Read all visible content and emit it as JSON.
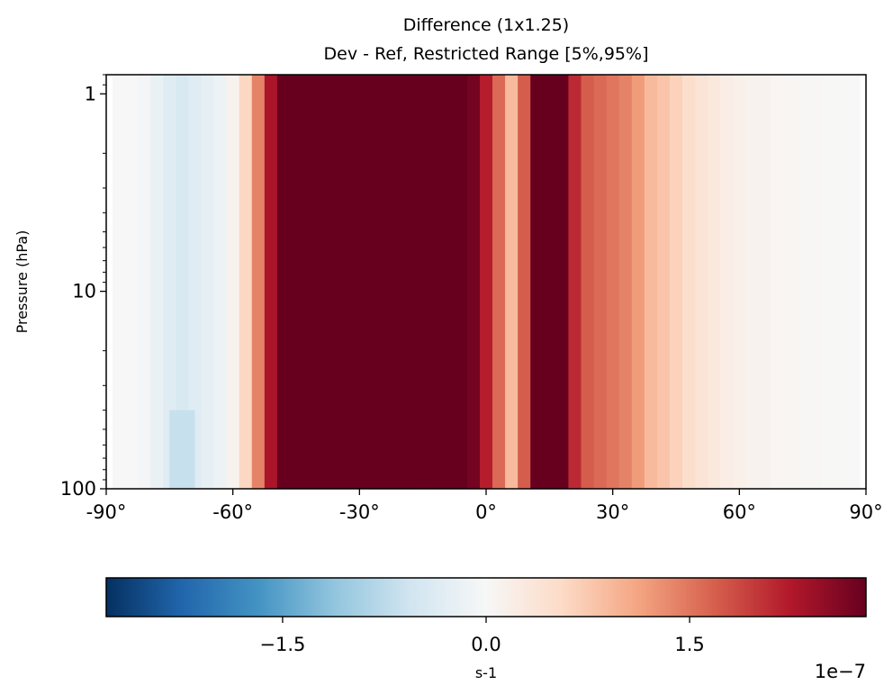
{
  "chart_data": {
    "type": "heatmap",
    "title": [
      "Difference (1x1.25)",
      "Dev - Ref, Restricted Range [5%,95%]"
    ],
    "xlabel": "",
    "ylabel": "Pressure (hPa)",
    "xlim": [
      -90,
      90
    ],
    "ylim": [
      100,
      0.8
    ],
    "yscale": "log",
    "xticks": [
      -90,
      -60,
      -30,
      0,
      30,
      60,
      90
    ],
    "xtick_labels": [
      "-90°",
      "-60°",
      "-30°",
      "0°",
      "30°",
      "60°",
      "90°"
    ],
    "yticks": [
      1,
      10,
      100
    ],
    "ytick_labels": [
      "1",
      "10",
      "100"
    ],
    "colormap": "RdBu_r",
    "color_range": [
      -2.8e-07,
      2.8e-07
    ],
    "colorbar": {
      "orientation": "horizontal",
      "label": "s-1",
      "ticks": [
        -1.5,
        0.0,
        1.5
      ],
      "tick_labels": [
        "−1.5",
        "0.0",
        "1.5"
      ],
      "offset_text": "1e−7"
    },
    "columns_lat": [
      -87,
      -84,
      -81,
      -78,
      -75,
      -72,
      -69,
      -66,
      -63,
      -60,
      -57,
      -54,
      -51,
      -48,
      -45,
      -42,
      -39,
      -36,
      -33,
      -30,
      -27,
      -24,
      -21,
      -18,
      -15,
      -12,
      -9,
      -6,
      -3,
      0,
      3,
      6,
      9,
      12,
      15,
      18,
      21,
      24,
      27,
      30,
      33,
      36,
      39,
      42,
      45,
      48,
      51,
      54,
      57,
      60,
      63,
      66,
      69,
      72,
      75,
      78,
      81,
      84,
      87
    ],
    "values_1e-7": [
      0.0,
      0.0,
      -0.05,
      -0.2,
      -0.35,
      -0.45,
      -0.35,
      -0.25,
      -0.15,
      0.1,
      0.6,
      1.4,
      2.3,
      2.9,
      3.3,
      3.6,
      3.5,
      3.2,
      2.9,
      3.1,
      3.4,
      3.0,
      3.5,
      4.0,
      3.9,
      3.3,
      2.9,
      3.3,
      2.7,
      2.2,
      1.6,
      0.9,
      1.7,
      4.0,
      4.2,
      3.0,
      2.1,
      1.7,
      1.6,
      1.5,
      1.4,
      1.2,
      0.9,
      0.8,
      0.65,
      0.5,
      0.4,
      0.3,
      0.2,
      0.15,
      0.1,
      0.1,
      0.05,
      0.05,
      0.02,
      0.02,
      0.01,
      0.01,
      0.0
    ],
    "polar_anomaly": {
      "lat_range": [
        -75,
        -69
      ],
      "pressure_range": [
        40,
        100
      ],
      "value_1e-7": -0.65
    }
  }
}
